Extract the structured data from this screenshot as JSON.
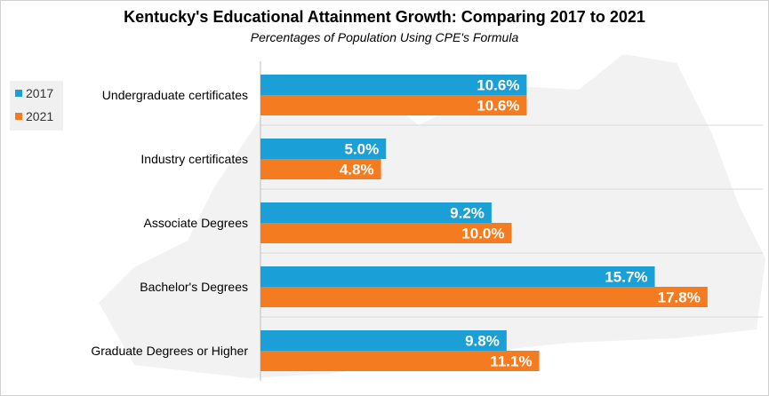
{
  "chart_data": {
    "type": "bar",
    "orientation": "horizontal",
    "title": "Kentucky's Educational Attainment Growth: Comparing 2017 to 2021",
    "subtitle": "Percentages of Population Using CPE's Formula",
    "categories": [
      "Undergraduate certificates",
      "Industry certificates",
      "Associate Degrees",
      "Bachelor's Degrees",
      "Graduate Degrees or Higher"
    ],
    "series": [
      {
        "name": "2017",
        "color": "#1a9fd6",
        "values": [
          10.6,
          5.0,
          9.2,
          15.7,
          9.8
        ],
        "labels": [
          "10.6%",
          "5.0%",
          "9.2%",
          "15.7%",
          "9.8%"
        ]
      },
      {
        "name": "2021",
        "color": "#f47b20",
        "values": [
          10.6,
          4.8,
          10.0,
          17.8,
          11.1
        ],
        "labels": [
          "10.6%",
          "4.8%",
          "10.0%",
          "17.8%",
          "11.1%"
        ]
      }
    ],
    "xlim": [
      0,
      20
    ],
    "grid": true,
    "legend_position": "top-left"
  }
}
